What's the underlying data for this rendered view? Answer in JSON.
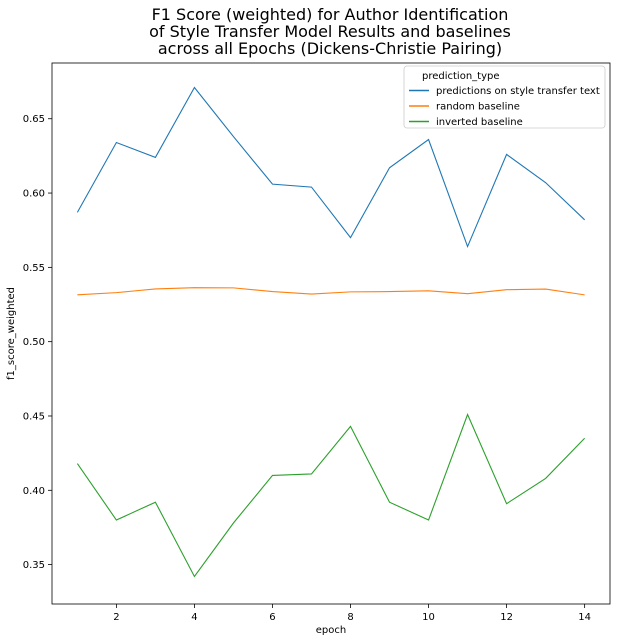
{
  "chart_data": {
    "type": "line",
    "title_lines": [
      "F1 Score (weighted) for Author Identification",
      "of Style Transfer Model Results and baselines",
      " across all Epochs (Dickens-Christie Pairing)"
    ],
    "xlabel": "epoch",
    "ylabel": "f1_score_weighted",
    "x": [
      1,
      2,
      3,
      4,
      5,
      6,
      7,
      8,
      9,
      10,
      11,
      12,
      13,
      14
    ],
    "xlim": [
      0.35,
      14.65
    ],
    "ylim": [
      0.3235,
      0.6875
    ],
    "xticks": [
      2,
      4,
      6,
      8,
      10,
      12,
      14
    ],
    "yticks": [
      0.35,
      0.4,
      0.45,
      0.5,
      0.55,
      0.6,
      0.65
    ],
    "ytick_labels": [
      "0.35",
      "0.40",
      "0.45",
      "0.50",
      "0.55",
      "0.60",
      "0.65"
    ],
    "grid": false,
    "legend": {
      "title": "prediction_type",
      "position": "top-right"
    },
    "series": [
      {
        "name": "predictions on style transfer text",
        "color": "#1f77b4",
        "values": [
          0.587,
          0.634,
          0.624,
          0.671,
          0.638,
          0.606,
          0.604,
          0.57,
          0.617,
          0.636,
          0.564,
          0.626,
          0.607,
          0.582
        ]
      },
      {
        "name": "random baseline",
        "color": "#ff7f0e",
        "values": [
          0.5315,
          0.533,
          0.5355,
          0.5363,
          0.5362,
          0.5337,
          0.532,
          0.5335,
          0.5337,
          0.5342,
          0.5323,
          0.535,
          0.5354,
          0.5315
        ]
      },
      {
        "name": "inverted baseline",
        "color": "#2ca02c",
        "values": [
          0.418,
          0.38,
          0.392,
          0.342,
          0.378,
          0.41,
          0.411,
          0.443,
          0.392,
          0.38,
          0.451,
          0.391,
          0.408,
          0.435
        ]
      }
    ]
  }
}
